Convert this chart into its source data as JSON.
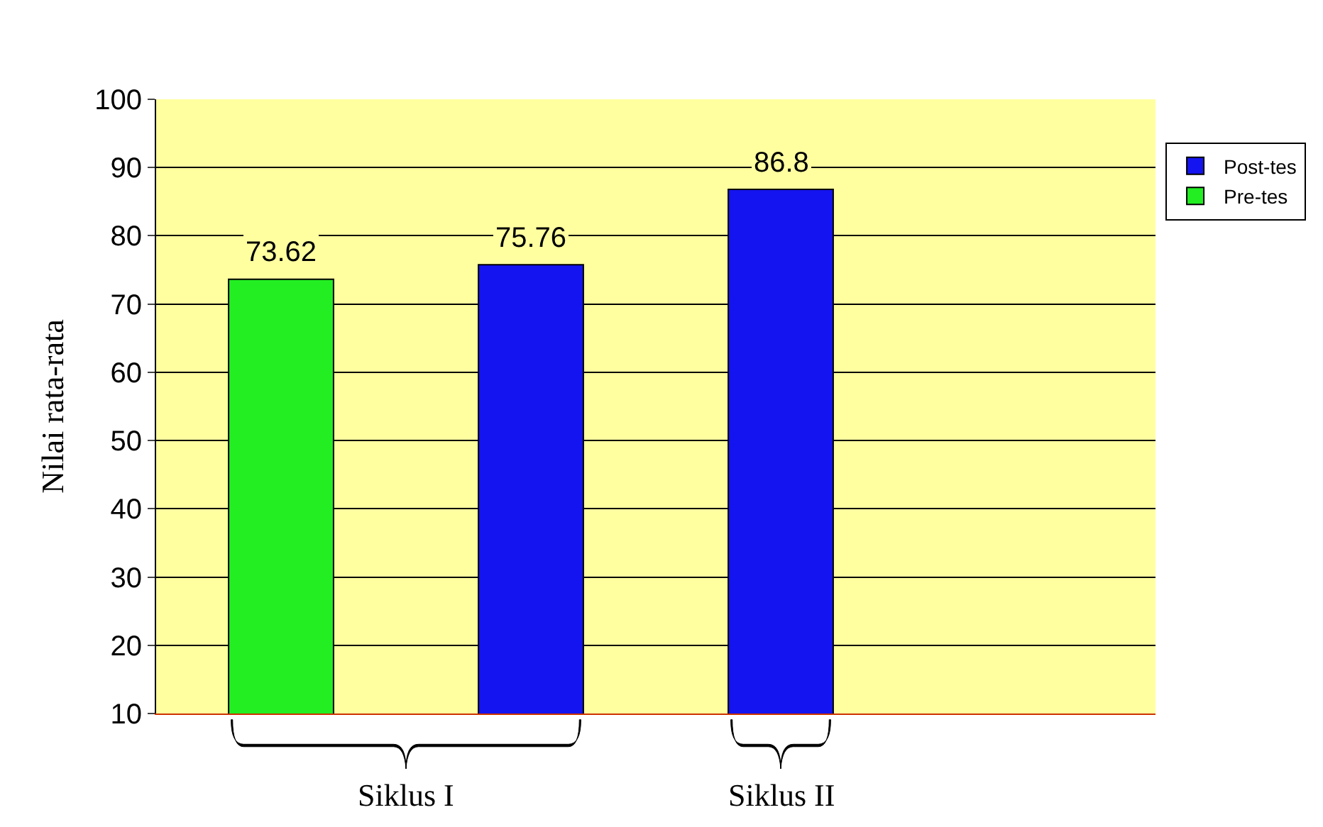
{
  "chart_data": {
    "type": "bar",
    "ylabel": "Nilai rata-rata",
    "categories": [
      null,
      null,
      null,
      null
    ],
    "series": [
      {
        "name": "Post-tes",
        "color": "#1414f0",
        "values": [
          null,
          75.76,
          86.8,
          null
        ]
      },
      {
        "name": "Pre-tes",
        "color": "#22ee22",
        "values": [
          73.62,
          null,
          null,
          null
        ]
      }
    ],
    "ylim": [
      10,
      100
    ],
    "yticks": [
      10,
      20,
      30,
      40,
      50,
      60,
      70,
      80,
      90,
      100
    ],
    "grid": "y",
    "legend": "top right",
    "data_labels": true,
    "annotations": [
      "Siklus I",
      "Siklus II"
    ]
  }
}
